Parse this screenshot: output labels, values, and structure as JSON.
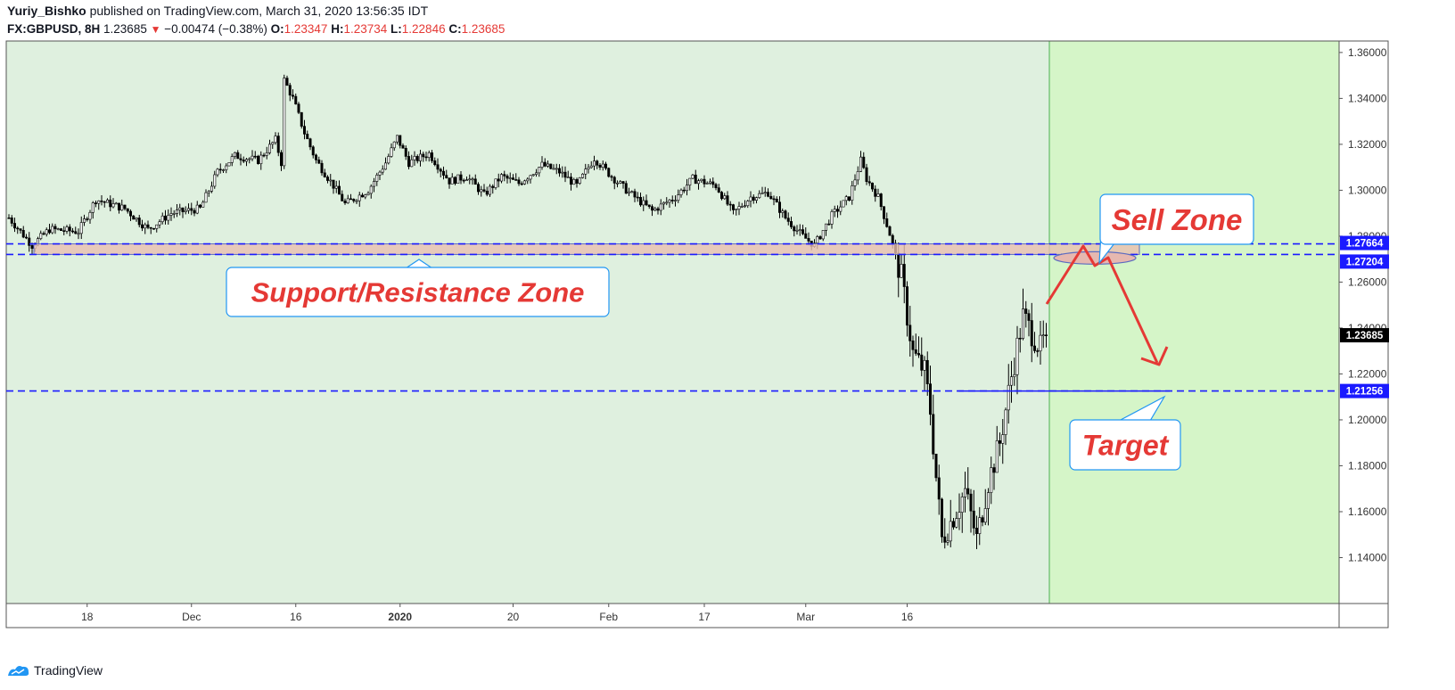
{
  "header": {
    "author": "Yuriy_Bishko",
    "published_text": "published on TradingView.com, March 31, 2020 13:56:35 IDT",
    "symbol": "FX:GBPUSD, 8H",
    "last": "1.23685",
    "change": "−0.00474 (−0.38%)",
    "o_label": "O:",
    "o_value": "1.23347",
    "h_label": "H:",
    "h_value": "1.23734",
    "l_label": "L:",
    "l_value": "1.22846",
    "c_label": "C:",
    "c_value": "1.23685"
  },
  "footer": {
    "brand": "TradingView"
  },
  "colors": {
    "bg_history": "#dff0df",
    "bg_forecast": "#d5f5c8",
    "level_line": "#1a1aff",
    "zone_fill": "#e8bfb0",
    "annotation_red": "#e53935",
    "callout_border": "#2196f3"
  },
  "chart_data": {
    "type": "candlestick",
    "ylim": [
      1.12,
      1.365
    ],
    "y_ticks": [
      {
        "v": 1.36,
        "label": "1.36000"
      },
      {
        "v": 1.34,
        "label": "1.34000"
      },
      {
        "v": 1.32,
        "label": "1.32000"
      },
      {
        "v": 1.3,
        "label": "1.30000"
      },
      {
        "v": 1.28,
        "label": "1.28000"
      },
      {
        "v": 1.26,
        "label": "1.26000"
      },
      {
        "v": 1.24,
        "label": "1.24000"
      },
      {
        "v": 1.22,
        "label": "1.22000"
      },
      {
        "v": 1.2,
        "label": "1.20000"
      },
      {
        "v": 1.18,
        "label": "1.18000"
      },
      {
        "v": 1.16,
        "label": "1.16000"
      },
      {
        "v": 1.14,
        "label": "1.14000"
      }
    ],
    "x_ticks": [
      {
        "i": 27,
        "label": "18",
        "bold": false
      },
      {
        "i": 63,
        "label": "Dec",
        "bold": false
      },
      {
        "i": 99,
        "label": "16",
        "bold": false
      },
      {
        "i": 135,
        "label": "2020",
        "bold": true
      },
      {
        "i": 174,
        "label": "20",
        "bold": false
      },
      {
        "i": 207,
        "label": "Feb",
        "bold": false
      },
      {
        "i": 240,
        "label": "17",
        "bold": false
      },
      {
        "i": 275,
        "label": "Mar",
        "bold": false
      },
      {
        "i": 310,
        "label": "16",
        "bold": false
      }
    ],
    "price_labels": [
      {
        "v": 1.27664,
        "label": "1.27664",
        "style": "level"
      },
      {
        "v": 1.27204,
        "label": "1.27204",
        "style": "level"
      },
      {
        "v": 1.23685,
        "label": "1.23685",
        "style": "last"
      },
      {
        "v": 1.21256,
        "label": "1.21256",
        "style": "level"
      }
    ],
    "levels": [
      1.27664,
      1.27204,
      1.21256
    ],
    "annotations": {
      "zone_label": "Support/Resistance Zone",
      "sell_label": "Sell Zone",
      "target_label": "Target"
    },
    "path": [
      [
        0,
        1.288
      ],
      [
        8,
        1.276
      ],
      [
        14,
        1.283
      ],
      [
        24,
        1.282
      ],
      [
        30,
        1.296
      ],
      [
        40,
        1.292
      ],
      [
        48,
        1.283
      ],
      [
        56,
        1.29
      ],
      [
        66,
        1.292
      ],
      [
        72,
        1.308
      ],
      [
        78,
        1.315
      ],
      [
        86,
        1.313
      ],
      [
        92,
        1.322
      ],
      [
        94,
        1.312
      ],
      [
        95,
        1.348
      ],
      [
        98,
        1.34
      ],
      [
        102,
        1.325
      ],
      [
        106,
        1.313
      ],
      [
        112,
        1.302
      ],
      [
        116,
        1.294
      ],
      [
        124,
        1.3
      ],
      [
        130,
        1.312
      ],
      [
        134,
        1.323
      ],
      [
        138,
        1.312
      ],
      [
        145,
        1.316
      ],
      [
        152,
        1.304
      ],
      [
        158,
        1.306
      ],
      [
        164,
        1.298
      ],
      [
        170,
        1.306
      ],
      [
        176,
        1.303
      ],
      [
        184,
        1.311
      ],
      [
        190,
        1.308
      ],
      [
        196,
        1.302
      ],
      [
        202,
        1.314
      ],
      [
        208,
        1.306
      ],
      [
        214,
        1.299
      ],
      [
        222,
        1.291
      ],
      [
        230,
        1.297
      ],
      [
        236,
        1.305
      ],
      [
        244,
        1.302
      ],
      [
        250,
        1.29
      ],
      [
        256,
        1.297
      ],
      [
        262,
        1.299
      ],
      [
        268,
        1.288
      ],
      [
        274,
        1.28
      ],
      [
        278,
        1.276
      ],
      [
        284,
        1.289
      ],
      [
        290,
        1.297
      ],
      [
        294,
        1.313
      ],
      [
        296,
        1.305
      ],
      [
        300,
        1.297
      ],
      [
        304,
        1.281
      ],
      [
        308,
        1.262
      ],
      [
        312,
        1.229
      ],
      [
        316,
        1.221
      ],
      [
        318,
        1.204
      ],
      [
        320,
        1.175
      ],
      [
        322,
        1.148
      ],
      [
        326,
        1.158
      ],
      [
        330,
        1.169
      ],
      [
        334,
        1.148
      ],
      [
        338,
        1.173
      ],
      [
        342,
        1.19
      ],
      [
        346,
        1.219
      ],
      [
        348,
        1.232
      ],
      [
        350,
        1.245
      ],
      [
        353,
        1.238
      ],
      [
        356,
        1.231
      ],
      [
        358,
        1.237
      ]
    ]
  }
}
